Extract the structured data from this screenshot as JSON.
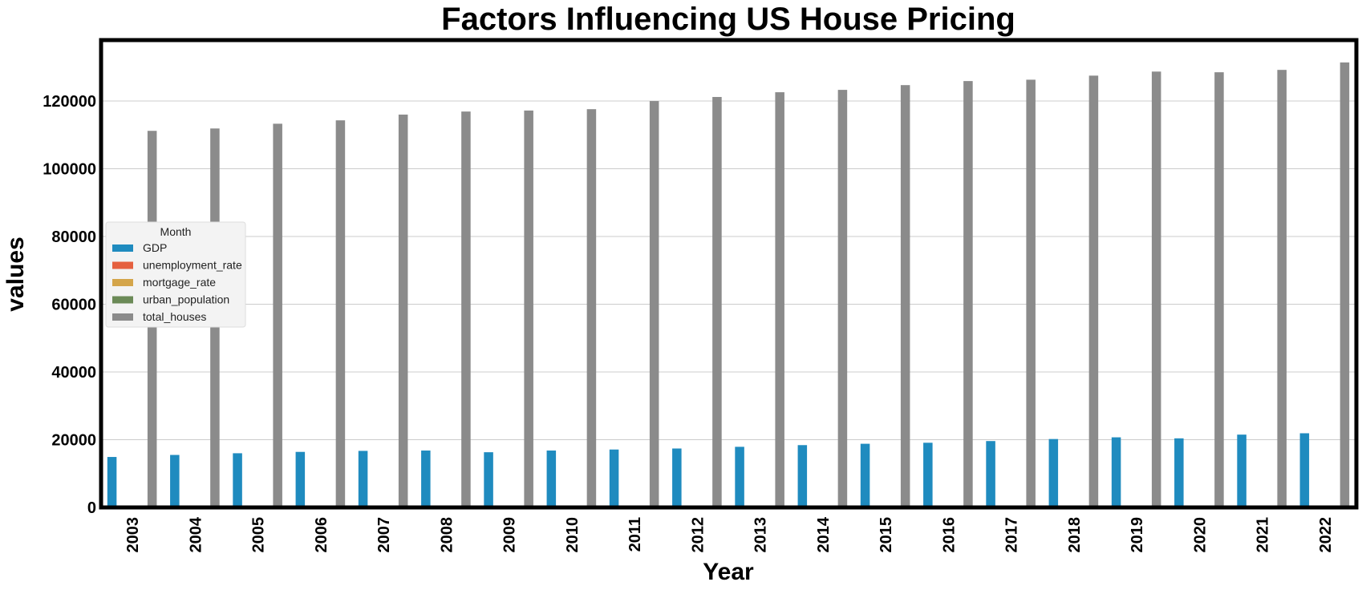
{
  "chart_data": {
    "type": "bar",
    "title": "Factors Influencing US House Pricing",
    "xlabel": "Year",
    "ylabel": "values",
    "ylim": [
      0,
      138000
    ],
    "yticks": [
      "0",
      "20000",
      "40000",
      "60000",
      "80000",
      "100000",
      "120000"
    ],
    "grid": true,
    "legend": {
      "title": "Month",
      "placement": "center-left"
    },
    "categories": [
      "2003",
      "2004",
      "2005",
      "2006",
      "2007",
      "2008",
      "2009",
      "2010",
      "2011",
      "2012",
      "2013",
      "2014",
      "2015",
      "2016",
      "2017",
      "2018",
      "2019",
      "2020",
      "2021",
      "2022"
    ],
    "series": [
      {
        "name": "GDP",
        "color": "#1f8bbf",
        "values": [
          14900,
          15500,
          16000,
          16400,
          16700,
          16800,
          16300,
          16800,
          17100,
          17400,
          17900,
          18400,
          18800,
          19100,
          19600,
          20200,
          20700,
          20400,
          21500,
          21900
        ]
      },
      {
        "name": "unemployment_rate",
        "color": "#e5603f",
        "values": [
          6.0,
          5.5,
          5.1,
          4.6,
          4.6,
          5.8,
          9.3,
          9.6,
          8.9,
          8.1,
          7.4,
          6.2,
          5.3,
          4.9,
          4.4,
          3.9,
          3.7,
          8.1,
          5.4,
          3.6
        ]
      },
      {
        "name": "mortgage_rate",
        "color": "#d4a54a",
        "values": [
          5.8,
          5.8,
          5.9,
          6.4,
          6.3,
          6.0,
          5.0,
          4.7,
          4.5,
          3.7,
          4.0,
          4.2,
          3.9,
          3.6,
          4.0,
          4.5,
          3.9,
          3.1,
          3.0,
          5.3
        ]
      },
      {
        "name": "urban_population",
        "color": "#6b8a57",
        "values": [
          79.6,
          79.8,
          80.0,
          80.2,
          80.4,
          80.6,
          80.8,
          80.9,
          81.0,
          81.1,
          81.3,
          81.4,
          81.6,
          81.8,
          82.0,
          82.1,
          82.3,
          82.5,
          82.7,
          82.9
        ]
      },
      {
        "name": "total_houses",
        "color": "#8b8b8b",
        "values": [
          111200,
          111900,
          113300,
          114300,
          116000,
          116900,
          117200,
          117600,
          120000,
          121200,
          122600,
          123300,
          124700,
          125900,
          126300,
          127500,
          128700,
          128500,
          129200,
          131400
        ]
      }
    ]
  }
}
